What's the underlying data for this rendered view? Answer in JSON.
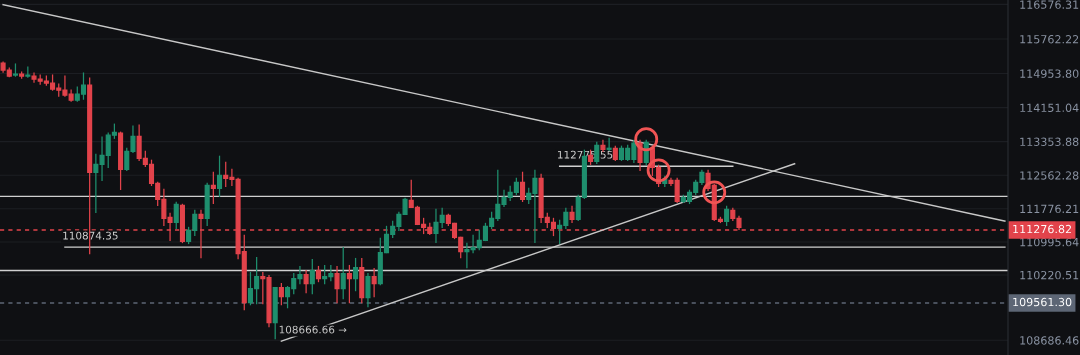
{
  "chart_data": {
    "type": "candlestick",
    "categories": [
      null,
      null,
      null,
      null,
      null,
      null,
      null,
      null,
      null,
      null,
      null,
      null,
      null,
      null,
      null,
      null,
      null,
      null,
      null,
      null,
      null,
      null,
      null,
      null,
      null,
      null,
      null,
      null,
      null,
      null,
      null,
      null,
      null,
      null,
      null,
      null,
      null,
      null,
      null,
      null,
      null,
      null,
      null,
      null,
      null,
      null,
      null,
      null,
      null,
      null,
      null,
      null,
      null,
      null,
      null,
      null,
      null,
      null,
      null,
      null,
      null,
      null,
      null,
      null,
      null,
      null,
      null,
      null,
      null,
      null,
      null,
      null,
      null,
      null,
      null,
      null,
      null,
      null,
      null,
      null,
      null,
      null,
      null,
      null,
      null,
      null,
      null,
      null,
      null,
      null,
      null,
      null,
      null,
      null,
      null,
      null,
      null,
      null,
      null,
      null,
      null,
      null,
      null,
      null,
      null,
      null,
      null,
      null,
      null,
      null,
      null,
      null,
      null,
      null,
      null,
      null,
      null,
      null,
      null,
      null,
      null,
      null,
      null,
      null,
      null,
      null,
      null,
      null,
      null,
      null,
      null,
      null,
      null,
      null,
      null,
      null,
      null,
      null,
      null,
      null,
      null,
      null,
      null,
      null,
      null,
      null,
      null,
      null,
      null,
      null,
      null,
      null,
      null,
      null,
      null,
      null,
      null,
      null,
      null,
      null,
      null,
      null,
      null
    ],
    "colors": [
      "#e2434b",
      "#e2434b",
      "#1f8f6e",
      "#e2434b",
      "#1f8f6e",
      "#e2434b",
      "#e2434b",
      "#e2434b",
      "#e2434b",
      "#e2434b",
      "#e2434b",
      "#e2434b",
      "#1f8f6e",
      "#1f8f6e",
      "#e2434b",
      "#1f8f6e",
      "#1f8f6e",
      "#1f8f6e",
      "#1f8f6e",
      "#e2434b",
      "#1f8f6e",
      "#1f8f6e",
      "#e2434b",
      "#e2434b",
      "#e2434b",
      "#e2434b",
      "#e2434b",
      "#e2434b",
      "#1f8f6e",
      "#e2434b",
      "#1f8f6e",
      "#1f8f6e",
      "#e2434b",
      "#1f8f6e",
      "#e2434b",
      "#1f8f6e",
      "#e2434b",
      "#e2434b",
      "#e2434b",
      "#e2434b",
      "#1f8f6e",
      "#1f8f6e",
      "#e2434b",
      "#e2434b",
      "#1f8f6e",
      "#e2434b",
      "#1f8f6e",
      "#1f8f6e",
      "#1f8f6e",
      "#e2434b",
      "#1f8f6e",
      "#e2434b",
      "#1f8f6e",
      "#1f8f6e",
      "#e2434b",
      "#1f8f6e",
      "#e2434b",
      "#1f8f6e",
      "#e2434b",
      "#1f8f6e",
      "#e2434b",
      "#1f8f6e",
      "#1f8f6e",
      "#1f8f6e",
      "#1f8f6e",
      "#1f8f6e",
      "#e2434b",
      "#e2434b",
      "#e2434b",
      "#e2434b",
      "#1f8f6e",
      "#1f8f6e",
      "#e2434b",
      "#e2434b",
      "#e2434b",
      "#1f8f6e",
      "#1f8f6e",
      "#1f8f6e",
      "#1f8f6e",
      "#1f8f6e",
      "#1f8f6e",
      "#1f8f6e",
      "#1f8f6e",
      "#1f8f6e",
      "#e2434b",
      "#1f8f6e",
      "#1f8f6e",
      "#e2434b",
      "#e2434b",
      "#e2434b",
      "#1f8f6e",
      "#1f8f6e",
      "#e2434b",
      "#1f8f6e",
      "#1f8f6e",
      "#e2434b",
      "#1f8f6e",
      "#e2434b",
      "#1f8f6e",
      "#e2434b",
      "#1f8f6e",
      "#1f8f6e",
      "#1f8f6e",
      "#e2434b",
      "#1f8f6e",
      "#e2434b",
      "#e2434b",
      "#1f8f6e",
      "#e2434b",
      "#e2434b",
      "#1f8f6e",
      "#1f8f6e",
      "#1f8f6e",
      "#1f8f6e",
      "#e2434b",
      "#e2434b",
      "#e2434b",
      "#1f8f6e",
      "#e2434b",
      "#e2434b",
      null,
      null,
      null,
      null,
      null,
      null,
      null,
      null,
      null,
      null,
      null,
      null,
      null,
      null,
      null,
      null,
      null,
      null,
      null,
      null,
      null,
      null,
      null,
      null,
      null,
      null,
      null,
      null,
      null,
      null,
      null,
      null,
      null,
      null,
      null,
      null,
      null,
      null,
      null,
      null,
      null,
      null,
      null
    ],
    "ohlc": [
      [
        115198,
        115222,
        114986,
        115034
      ],
      [
        115034,
        115081,
        114880,
        114892
      ],
      [
        114916,
        115175,
        114892,
        114939
      ],
      [
        114939,
        114986,
        114845,
        114892
      ],
      [
        114892,
        115104,
        114869,
        114916
      ],
      [
        114892,
        114963,
        114751,
        114822
      ],
      [
        114822,
        114916,
        114704,
        114775
      ],
      [
        114775,
        114892,
        114680,
        114728
      ],
      [
        114728,
        114916,
        114563,
        114586
      ],
      [
        114610,
        114704,
        114422,
        114563
      ],
      [
        114563,
        114892,
        114422,
        114445
      ],
      [
        114469,
        114563,
        114304,
        114327
      ],
      [
        114327,
        114633,
        114304,
        114469
      ],
      [
        114469,
        114963,
        114351,
        114680
      ],
      [
        114680,
        114845,
        110724,
        112631
      ],
      [
        112631,
        113055,
        111689,
        112820
      ],
      [
        112820,
        113456,
        112443,
        113032
      ],
      [
        113032,
        113550,
        112749,
        113503
      ],
      [
        113503,
        113762,
        113432,
        113573
      ],
      [
        113550,
        113573,
        112231,
        112702
      ],
      [
        112702,
        113197,
        112679,
        113126
      ],
      [
        113126,
        113715,
        113102,
        113479
      ],
      [
        113479,
        113738,
        112914,
        112961
      ],
      [
        112961,
        113126,
        112773,
        112820
      ],
      [
        112820,
        112914,
        112325,
        112372
      ],
      [
        112372,
        112396,
        111854,
        111996
      ],
      [
        111996,
        112231,
        111383,
        111548
      ],
      [
        111572,
        111666,
        111030,
        111454
      ],
      [
        111454,
        111925,
        111313,
        111878
      ],
      [
        111854,
        111878,
        110983,
        111007
      ],
      [
        111007,
        111336,
        110960,
        111266
      ],
      [
        111266,
        111737,
        111148,
        111642
      ],
      [
        111642,
        111737,
        110630,
        111548
      ],
      [
        111548,
        112372,
        111383,
        112325
      ],
      [
        112325,
        112631,
        111901,
        112255
      ],
      [
        112255,
        113008,
        112066,
        112561
      ],
      [
        112561,
        112867,
        112302,
        112490
      ],
      [
        112514,
        112702,
        112325,
        112467
      ],
      [
        112467,
        112490,
        110606,
        110724
      ],
      [
        110771,
        111148,
        109405,
        109570
      ],
      [
        109570,
        110276,
        109523,
        109900
      ],
      [
        109900,
        110630,
        109547,
        110182
      ],
      [
        110182,
        110276,
        109547,
        110135
      ],
      [
        110159,
        110206,
        109005,
        109099
      ],
      [
        109099,
        109923,
        108722,
        109923
      ],
      [
        109923,
        110017,
        109523,
        109711
      ],
      [
        109711,
        109947,
        109452,
        109923
      ],
      [
        109900,
        110253,
        109782,
        110135
      ],
      [
        110135,
        110418,
        110017,
        110229
      ],
      [
        110229,
        110324,
        109806,
        110017
      ],
      [
        110017,
        110583,
        109782,
        110324
      ],
      [
        110324,
        110418,
        110065,
        110135
      ],
      [
        110135,
        110441,
        110017,
        110182
      ],
      [
        110182,
        110441,
        110088,
        110253
      ],
      [
        110253,
        110418,
        109570,
        109900
      ],
      [
        109900,
        110865,
        109664,
        110253
      ],
      [
        110253,
        110441,
        109570,
        110135
      ],
      [
        110135,
        110606,
        109853,
        110394
      ],
      [
        110394,
        110606,
        109570,
        109688
      ],
      [
        109688,
        110253,
        109476,
        110182
      ],
      [
        110182,
        110371,
        109711,
        110017
      ],
      [
        110017,
        111077,
        109994,
        110747
      ],
      [
        110747,
        111360,
        110747,
        111171
      ],
      [
        111171,
        111477,
        111101,
        111360
      ],
      [
        111360,
        111689,
        111266,
        111642
      ],
      [
        111642,
        112019,
        111642,
        111996
      ],
      [
        111972,
        112443,
        111807,
        111807
      ],
      [
        111807,
        111831,
        111407,
        111407
      ],
      [
        111407,
        111548,
        111195,
        111336
      ],
      [
        111336,
        111430,
        111171,
        111195
      ],
      [
        111195,
        111760,
        110983,
        111454
      ],
      [
        111454,
        111784,
        111336,
        111619
      ],
      [
        111619,
        111642,
        111383,
        111430
      ],
      [
        111430,
        111430,
        111077,
        111101
      ],
      [
        111101,
        111101,
        110630,
        110771
      ],
      [
        110771,
        110960,
        110394,
        110818
      ],
      [
        110818,
        111148,
        110747,
        110865
      ],
      [
        110865,
        111266,
        110818,
        111030
      ],
      [
        111030,
        111430,
        111030,
        111360
      ],
      [
        111360,
        111689,
        111313,
        111548
      ],
      [
        111548,
        112679,
        111501,
        111878
      ],
      [
        111878,
        112208,
        111831,
        112043
      ],
      [
        112043,
        112302,
        111972,
        112160
      ],
      [
        112160,
        112490,
        112113,
        112396
      ],
      [
        112396,
        112631,
        111949,
        111996
      ],
      [
        111996,
        112255,
        111901,
        112137
      ],
      [
        112137,
        112679,
        110983,
        112490
      ],
      [
        112490,
        112584,
        111454,
        111572
      ],
      [
        111572,
        111666,
        111336,
        111454
      ],
      [
        111454,
        111548,
        111148,
        111313
      ],
      [
        111313,
        111501,
        110960,
        111383
      ],
      [
        111383,
        111784,
        111313,
        111689
      ],
      [
        111689,
        111831,
        111454,
        111524
      ],
      [
        111524,
        112090,
        111501,
        112043
      ],
      [
        112043,
        113150,
        112019,
        113008
      ],
      [
        113032,
        113150,
        112820,
        112891
      ],
      [
        112891,
        113338,
        112844,
        113267
      ],
      [
        113267,
        113385,
        113126,
        113173
      ],
      [
        113173,
        113432,
        113150,
        113197
      ],
      [
        113197,
        113244,
        112914,
        112938
      ],
      [
        112938,
        113244,
        112914,
        113197
      ],
      [
        112938,
        113267,
        112914,
        113197
      ],
      [
        112938,
        113385,
        112867,
        113315
      ],
      [
        113315,
        113385,
        112679,
        112867
      ],
      [
        112867,
        113385,
        112820,
        113338
      ],
      [
        113197,
        113244,
        112561,
        112749
      ],
      [
        112749,
        112796,
        112302,
        112372
      ],
      [
        112372,
        112537,
        112302,
        112467
      ],
      [
        112443,
        112490,
        112325,
        112372
      ],
      [
        112443,
        112490,
        111925,
        111949
      ],
      [
        111949,
        112090,
        111925,
        112043
      ],
      [
        111949,
        112208,
        111901,
        112160
      ],
      [
        112160,
        112443,
        112113,
        112396
      ],
      [
        112396,
        112679,
        112349,
        112631
      ],
      [
        112608,
        112679,
        112208,
        112255
      ],
      [
        112325,
        112349,
        111501,
        111524
      ],
      [
        111524,
        111572,
        111454,
        111477
      ],
      [
        111477,
        111831,
        111383,
        111760
      ],
      [
        111737,
        111784,
        111501,
        111548
      ],
      [
        111548,
        111595,
        111289,
        111336
      ],
      null,
      null,
      null,
      null,
      null,
      null,
      null,
      null,
      null,
      null,
      null,
      null,
      null,
      null,
      null,
      null,
      null,
      null,
      null,
      null,
      null,
      null,
      null,
      null,
      null,
      null,
      null,
      null,
      null,
      null,
      null,
      null,
      null,
      null,
      null,
      null,
      null,
      null,
      null,
      null,
      null,
      null,
      null
    ],
    "series": [
      {
        "type": "line",
        "color": "#c8c8c8",
        "values": [
          116572,
          null,
          null,
          null,
          null,
          null,
          null,
          null,
          null,
          null,
          null,
          null,
          null,
          null,
          null,
          null,
          null,
          null,
          null,
          null,
          null,
          null,
          null,
          null,
          null,
          null,
          null,
          null,
          null,
          null,
          null,
          null,
          null,
          null,
          null,
          null,
          null,
          null,
          null,
          null,
          null,
          null,
          null,
          null,
          null,
          null,
          null,
          null,
          null,
          null,
          null,
          null,
          null,
          null,
          null,
          null,
          null,
          null,
          null,
          null,
          null,
          null,
          null,
          null,
          null,
          null,
          null,
          null,
          null,
          null,
          null,
          null,
          null,
          null,
          null,
          null,
          null,
          null,
          null,
          null,
          null,
          null,
          null,
          null,
          null,
          null,
          null,
          null,
          null,
          null,
          null,
          null,
          null,
          null,
          null,
          null,
          null,
          null,
          null,
          null,
          null,
          null,
          null,
          null,
          null,
          null,
          null,
          null,
          null,
          null,
          null,
          null,
          null,
          null,
          null,
          null,
          null,
          null,
          null,
          null,
          null,
          null,
          null,
          null,
          null,
          null,
          null,
          null,
          null,
          null,
          null,
          null,
          null,
          null,
          null,
          null,
          null,
          null,
          null,
          null,
          null,
          null,
          null,
          null,
          null,
          null,
          null,
          null,
          null,
          null,
          null,
          null,
          null,
          null,
          null,
          null,
          null,
          null,
          null,
          null,
          null,
          null,
          111485
        ]
      },
      {
        "type": "line",
        "color": "#c8c8c8",
        "name": "108666.66 →",
        "values": [
          null,
          null,
          null,
          null,
          null,
          null,
          null,
          null,
          null,
          null,
          null,
          null,
          null,
          null,
          null,
          null,
          null,
          null,
          null,
          null,
          null,
          null,
          null,
          null,
          null,
          null,
          null,
          null,
          null,
          null,
          null,
          null,
          null,
          null,
          null,
          null,
          null,
          null,
          null,
          null,
          null,
          null,
          null,
          null,
          null,
          108666.66,
          null,
          null,
          null,
          null,
          null,
          null,
          null,
          null,
          null,
          null,
          null,
          null,
          null,
          null,
          null,
          null,
          null,
          null,
          null,
          null,
          null,
          null,
          null,
          null,
          null,
          null,
          null,
          null,
          null,
          null,
          null,
          null,
          null,
          null,
          null,
          null,
          null,
          null,
          null,
          null,
          null,
          null,
          null,
          null,
          null,
          null,
          null,
          null,
          null,
          null,
          null,
          null,
          null,
          null,
          null,
          null,
          null,
          null,
          null,
          null,
          null,
          null,
          null,
          null,
          null,
          null,
          null,
          null,
          null,
          null,
          null,
          null,
          null,
          null,
          null,
          null,
          null,
          null,
          null,
          null,
          null,
          null,
          112833,
          null,
          null,
          null,
          null,
          null,
          null,
          null,
          null,
          null,
          null,
          null,
          null,
          null,
          null,
          null,
          null,
          null,
          null,
          null,
          null,
          null,
          null,
          null,
          null,
          null,
          null,
          null,
          null,
          null,
          null,
          null,
          null,
          null,
          null
        ]
      },
      {
        "type": "line",
        "color": "#d0d0d0",
        "name": "112775.55",
        "values": [
          null,
          null,
          null,
          null,
          null,
          null,
          null,
          null,
          null,
          null,
          null,
          null,
          null,
          null,
          null,
          null,
          null,
          null,
          null,
          null,
          null,
          null,
          null,
          null,
          null,
          null,
          null,
          null,
          null,
          null,
          null,
          null,
          null,
          null,
          null,
          null,
          null,
          null,
          null,
          null,
          null,
          null,
          null,
          null,
          null,
          null,
          null,
          null,
          null,
          null,
          null,
          null,
          null,
          null,
          null,
          null,
          null,
          null,
          null,
          null,
          null,
          null,
          null,
          null,
          null,
          null,
          null,
          null,
          null,
          null,
          null,
          null,
          null,
          null,
          null,
          null,
          null,
          null,
          null,
          null,
          null,
          null,
          null,
          null,
          null,
          null,
          null,
          null,
          null,
          null,
          112775.55,
          null,
          null,
          null,
          null,
          null,
          null,
          null,
          null,
          null,
          null,
          null,
          null,
          null,
          null,
          null,
          null,
          null,
          null,
          null,
          null,
          null,
          null,
          null,
          null,
          null,
          null,
          null,
          112775.55,
          null,
          null,
          null,
          null,
          null,
          null,
          null,
          null,
          null,
          null,
          null,
          null,
          null,
          null,
          null,
          null,
          null,
          null,
          null,
          null,
          null,
          null,
          null,
          null,
          null,
          null,
          null,
          null,
          null,
          null,
          null,
          null,
          null,
          null,
          null,
          null,
          null,
          null,
          null,
          null,
          null,
          null,
          null,
          null
        ]
      },
      {
        "type": "line",
        "color": "#d0d0d0",
        "name": "110874.35",
        "values": [
          null,
          null,
          null,
          null,
          null,
          null,
          null,
          null,
          null,
          null,
          110874.35,
          null,
          null,
          null,
          null,
          null,
          null,
          null,
          null,
          null,
          null,
          null,
          null,
          null,
          null,
          null,
          null,
          null,
          null,
          null,
          null,
          null,
          null,
          null,
          null,
          null,
          null,
          null,
          null,
          null,
          null,
          null,
          null,
          null,
          null,
          null,
          null,
          null,
          null,
          null,
          null,
          null,
          null,
          null,
          null,
          null,
          null,
          null,
          null,
          null,
          null,
          null,
          null,
          null,
          null,
          null,
          null,
          null,
          null,
          null,
          null,
          null,
          null,
          null,
          null,
          null,
          null,
          null,
          null,
          null,
          null,
          null,
          null,
          null,
          null,
          null,
          null,
          null,
          null,
          null,
          null,
          null,
          null,
          null,
          null,
          null,
          null,
          null,
          null,
          null,
          null,
          null,
          null,
          null,
          null,
          null,
          null,
          null,
          null,
          null,
          null,
          null,
          null,
          null,
          null,
          null,
          null,
          null,
          null,
          null,
          null,
          null,
          null,
          null,
          null,
          null,
          null,
          null,
          null,
          null,
          null,
          null,
          null,
          null,
          null,
          null,
          null,
          null,
          null,
          null,
          null,
          null,
          null,
          null,
          null,
          null,
          null,
          null,
          null,
          null,
          null,
          null,
          null,
          null,
          null,
          null,
          null,
          null,
          null,
          null,
          null,
          null,
          110874.35
        ]
      },
      {
        "type": "scatter",
        "color": "#f05454",
        "marker": "circle",
        "values": [
          null,
          null,
          null,
          null,
          null,
          null,
          null,
          null,
          null,
          null,
          null,
          null,
          null,
          null,
          null,
          null,
          null,
          null,
          null,
          null,
          null,
          null,
          null,
          null,
          null,
          null,
          null,
          null,
          null,
          null,
          null,
          null,
          null,
          null,
          null,
          null,
          null,
          null,
          null,
          null,
          null,
          null,
          null,
          null,
          null,
          null,
          null,
          null,
          null,
          null,
          null,
          null,
          null,
          null,
          null,
          null,
          null,
          null,
          null,
          null,
          null,
          null,
          null,
          null,
          null,
          null,
          null,
          null,
          null,
          null,
          null,
          null,
          null,
          null,
          null,
          null,
          null,
          null,
          null,
          null,
          null,
          null,
          null,
          null,
          null,
          null,
          null,
          null,
          null,
          null,
          null,
          null,
          null,
          null,
          null,
          null,
          null,
          null,
          null,
          null,
          null,
          null,
          null,
          null,
          113409,
          null,
          112679,
          null,
          null,
          null,
          null,
          null,
          null,
          null,
          null,
          112161,
          null,
          null,
          null,
          null,
          null,
          null,
          null,
          null,
          null,
          null,
          null,
          null,
          null,
          null,
          null,
          null,
          null,
          null,
          null,
          null,
          null,
          null,
          null,
          null,
          null,
          null,
          null,
          null,
          null,
          null,
          null,
          null,
          null,
          null,
          null,
          null,
          null,
          null,
          null,
          null,
          null,
          null,
          null,
          null,
          null,
          null,
          null
        ]
      }
    ],
    "ref_lines": [
      {
        "axis": "y",
        "value": 112066,
        "color": "#d0d0d0",
        "line_style": "solid"
      },
      {
        "axis": "y",
        "value": 110324,
        "color": "#d0d0d0",
        "line_style": "solid"
      },
      {
        "axis": "y",
        "value": 111276.82,
        "label": "111276.82",
        "color": "#e2434b",
        "line_style": "dashed"
      },
      {
        "axis": "y",
        "value": 109561.3,
        "label": "109561.30",
        "color": "#5d6675",
        "line_style": "dashed"
      }
    ],
    "ylim": [
      108340,
      116680
    ],
    "yticks": [
      {
        "value": 108686.46,
        "label": "108686.46"
      },
      {
        "value": 110220.51,
        "label": "110220.51"
      },
      {
        "value": 110995.64,
        "label": "110995.64"
      },
      {
        "value": 111776.21,
        "label": "111776.21"
      },
      {
        "value": 112562.28,
        "label": "112562.28"
      },
      {
        "value": 113353.88,
        "label": "113353.88"
      },
      {
        "value": 114151.04,
        "label": "114151.04"
      },
      {
        "value": 114953.8,
        "label": "114953.80"
      },
      {
        "value": 115762.22,
        "label": "115762.22"
      },
      {
        "value": 116576.31,
        "label": "116576.31"
      }
    ],
    "tick_labels": "y",
    "grid": "y"
  }
}
